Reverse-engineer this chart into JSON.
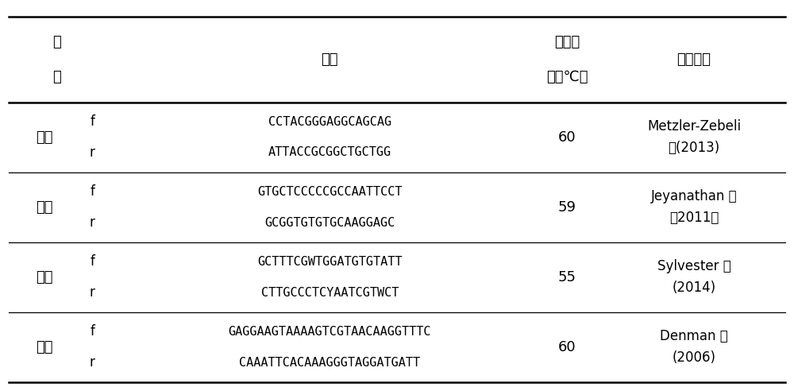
{
  "header_col1_line1": "引",
  "header_col1_line2": "物",
  "header_col2": "序列",
  "header_col3_line1": "退火温",
  "header_col3_line2": "度（℃）",
  "header_col4": "参考文献",
  "groups": [
    {
      "name": "细菌",
      "f_seq": "CCTACGGGAGGCAGCAG",
      "r_seq": "ATTACCGCGGCTGCTGG",
      "temp": "60",
      "ref1": "Metzler-Zebeli",
      "ref2": "等(2013)"
    },
    {
      "name": "古菌",
      "f_seq": "GTGCTCCCCCGCCAATTCCT",
      "r_seq": "GCGGTGTGTGCAAGGAGC",
      "temp": "59",
      "ref1": "Jeyanathan 等",
      "ref2": "（2011）"
    },
    {
      "name": "原虫",
      "f_seq": "GCTTTCGWTGGATGTGTATT",
      "r_seq": "CTTGCCCTCYAATCGTWCT",
      "temp": "55",
      "ref1": "Sylvester 等",
      "ref2": "(2014)"
    },
    {
      "name": "真菌",
      "f_seq": "GAGGAAGTAAAAGTCGTAACAAGGTTTC",
      "r_seq": "CAAATTCACAAAGGGTAGGATGATT",
      "temp": "60",
      "ref1": "Denman 等",
      "ref2": "(2006)"
    }
  ],
  "bg_color": "#ffffff",
  "text_color": "#000000",
  "line_color": "#000000",
  "font_size_header_cn": 13,
  "font_size_body_cn": 13,
  "font_size_body_en": 12,
  "font_size_seq": 11
}
